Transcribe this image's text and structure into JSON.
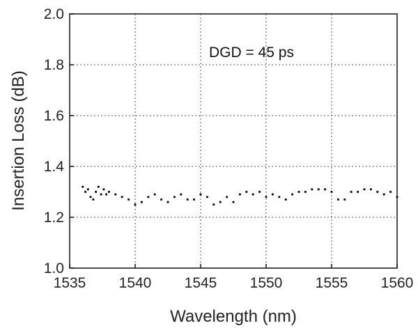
{
  "chart_data": {
    "type": "scatter",
    "xlabel": "Wavelength (nm)",
    "ylabel": "Insertion Loss (dB)",
    "xlim": [
      1535,
      1560
    ],
    "ylim": [
      1.0,
      2.0
    ],
    "xticks": [
      1535,
      1540,
      1545,
      1550,
      1555,
      1560
    ],
    "yticks": [
      1.0,
      1.2,
      1.4,
      1.6,
      1.8,
      2.0
    ],
    "xtick_labels": [
      "1535",
      "1540",
      "1545",
      "1550",
      "1555",
      "1560"
    ],
    "ytick_labels": [
      "1.0",
      "1.2",
      "1.4",
      "1.6",
      "1.8",
      "2.0"
    ],
    "grid": true,
    "annotation": "DGD = 45 ps",
    "color": "#111111",
    "series": [
      {
        "x": [
          1536.0,
          1536.2,
          1536.4,
          1536.6,
          1536.8,
          1537.0,
          1537.2,
          1537.4,
          1537.6,
          1537.8,
          1538.0,
          1538.5,
          1539.0,
          1539.5,
          1540.0,
          1540.5,
          1541.0,
          1541.5,
          1542.0,
          1542.5,
          1543.0,
          1543.5,
          1544.0,
          1544.5,
          1545.0,
          1545.5,
          1546.0,
          1546.5,
          1547.0,
          1547.5,
          1548.0,
          1548.5,
          1549.0,
          1549.5,
          1550.0,
          1550.5,
          1551.0,
          1551.5,
          1552.0,
          1552.5,
          1553.0,
          1553.5,
          1554.0,
          1554.5,
          1555.0,
          1555.5,
          1556.0,
          1556.5,
          1557.0,
          1557.5,
          1558.0,
          1558.5,
          1559.0,
          1559.5,
          1560.0
        ],
        "y": [
          1.32,
          1.3,
          1.31,
          1.28,
          1.27,
          1.3,
          1.32,
          1.29,
          1.31,
          1.29,
          1.3,
          1.29,
          1.28,
          1.27,
          1.25,
          1.26,
          1.28,
          1.29,
          1.27,
          1.26,
          1.28,
          1.29,
          1.27,
          1.27,
          1.29,
          1.28,
          1.25,
          1.26,
          1.28,
          1.26,
          1.29,
          1.3,
          1.29,
          1.3,
          1.28,
          1.29,
          1.28,
          1.27,
          1.29,
          1.3,
          1.3,
          1.31,
          1.31,
          1.31,
          1.3,
          1.27,
          1.27,
          1.3,
          1.3,
          1.31,
          1.31,
          1.3,
          1.29,
          1.3,
          1.28
        ]
      }
    ]
  }
}
